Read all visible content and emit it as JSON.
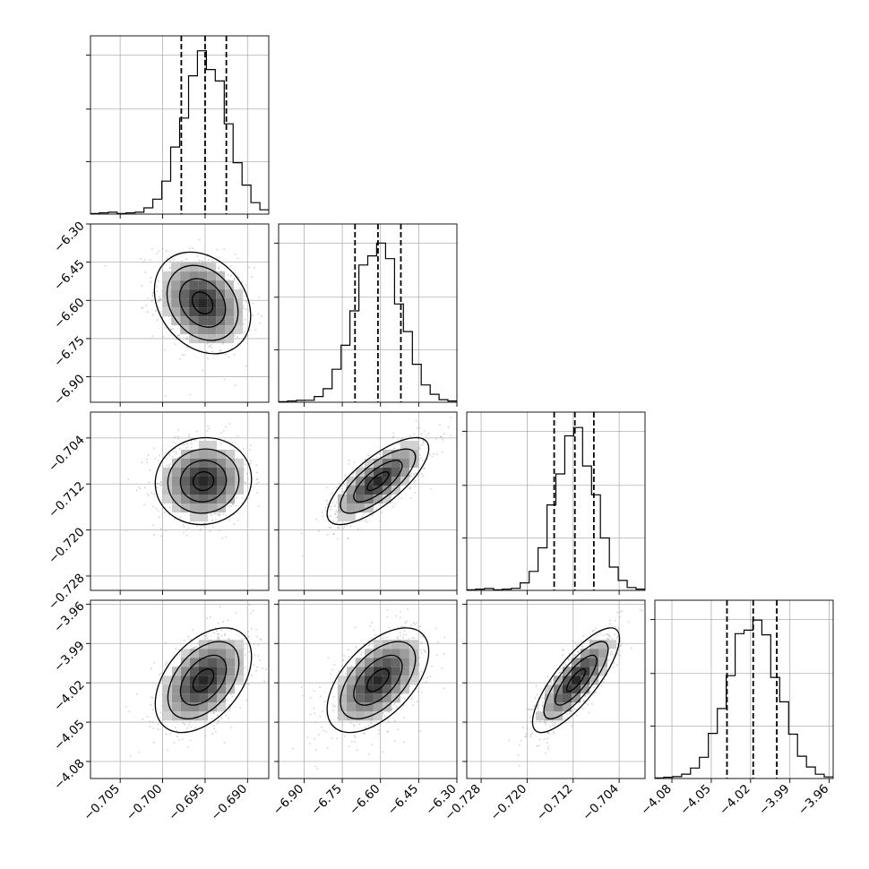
{
  "chart_data": {
    "type": "corner",
    "grid": true,
    "params": [
      {
        "index": 0,
        "range": [
          -0.7085,
          -0.6875
        ],
        "ticks": [
          -0.705,
          -0.7,
          -0.695,
          -0.69
        ],
        "tick_labels": [
          "−0.705",
          "−0.700",
          "−0.695",
          "−0.690"
        ],
        "quantiles": [
          -0.6978,
          -0.695,
          -0.6925
        ],
        "median": -0.695,
        "sigma": 0.0026
      },
      {
        "index": 1,
        "range": [
          -7.0,
          -6.3
        ],
        "ticks": [
          -6.9,
          -6.75,
          -6.6,
          -6.45,
          -6.3
        ],
        "tick_labels": [
          "−6.90",
          "−6.75",
          "−6.60",
          "−6.45",
          "−6.30"
        ],
        "quantiles": [
          -6.7,
          -6.61,
          -6.52
        ],
        "median": -6.61,
        "sigma": 0.09
      },
      {
        "index": 2,
        "range": [
          -0.7305,
          -0.6995
        ],
        "ticks": [
          -0.728,
          -0.72,
          -0.712,
          -0.704
        ],
        "tick_labels": [
          "−0.728",
          "−0.720",
          "−0.712",
          "−0.704"
        ],
        "quantiles": [
          -0.7153,
          -0.7117,
          -0.7084
        ],
        "median": -0.7117,
        "sigma": 0.0035
      },
      {
        "index": 3,
        "range": [
          -4.093,
          -3.957
        ],
        "ticks": [
          -4.08,
          -4.05,
          -4.02,
          -3.99,
          -3.96
        ],
        "tick_labels": [
          "−4.08",
          "−4.05",
          "−4.02",
          "−3.99",
          "−3.96"
        ],
        "quantiles": [
          -4.038,
          -4.018,
          -4.0
        ],
        "median": -4.018,
        "sigma": 0.019
      }
    ],
    "hist_max_ticks": [
      0.33,
      0.66,
      1.0
    ],
    "pairs": [
      {
        "x": 0,
        "y": 1,
        "mean": [
          -0.6953,
          -6.61
        ],
        "sigma": [
          0.0027,
          0.095
        ],
        "rho": -0.25
      },
      {
        "x": 0,
        "y": 2,
        "mean": [
          -0.6952,
          -0.7115
        ],
        "sigma": [
          0.0027,
          0.0036
        ],
        "rho": 0.05
      },
      {
        "x": 1,
        "y": 2,
        "mean": [
          -6.61,
          -0.7115
        ],
        "sigma": [
          0.095,
          0.0036
        ],
        "rho": 0.75
      },
      {
        "x": 0,
        "y": 3,
        "mean": [
          -0.6952,
          -4.018
        ],
        "sigma": [
          0.0027,
          0.019
        ],
        "rho": 0.45
      },
      {
        "x": 1,
        "y": 3,
        "mean": [
          -6.61,
          -4.018
        ],
        "sigma": [
          0.095,
          0.019
        ],
        "rho": 0.55
      },
      {
        "x": 2,
        "y": 3,
        "mean": [
          -0.7115,
          -4.018
        ],
        "sigma": [
          0.0036,
          0.019
        ],
        "rho": 0.8
      }
    ]
  }
}
